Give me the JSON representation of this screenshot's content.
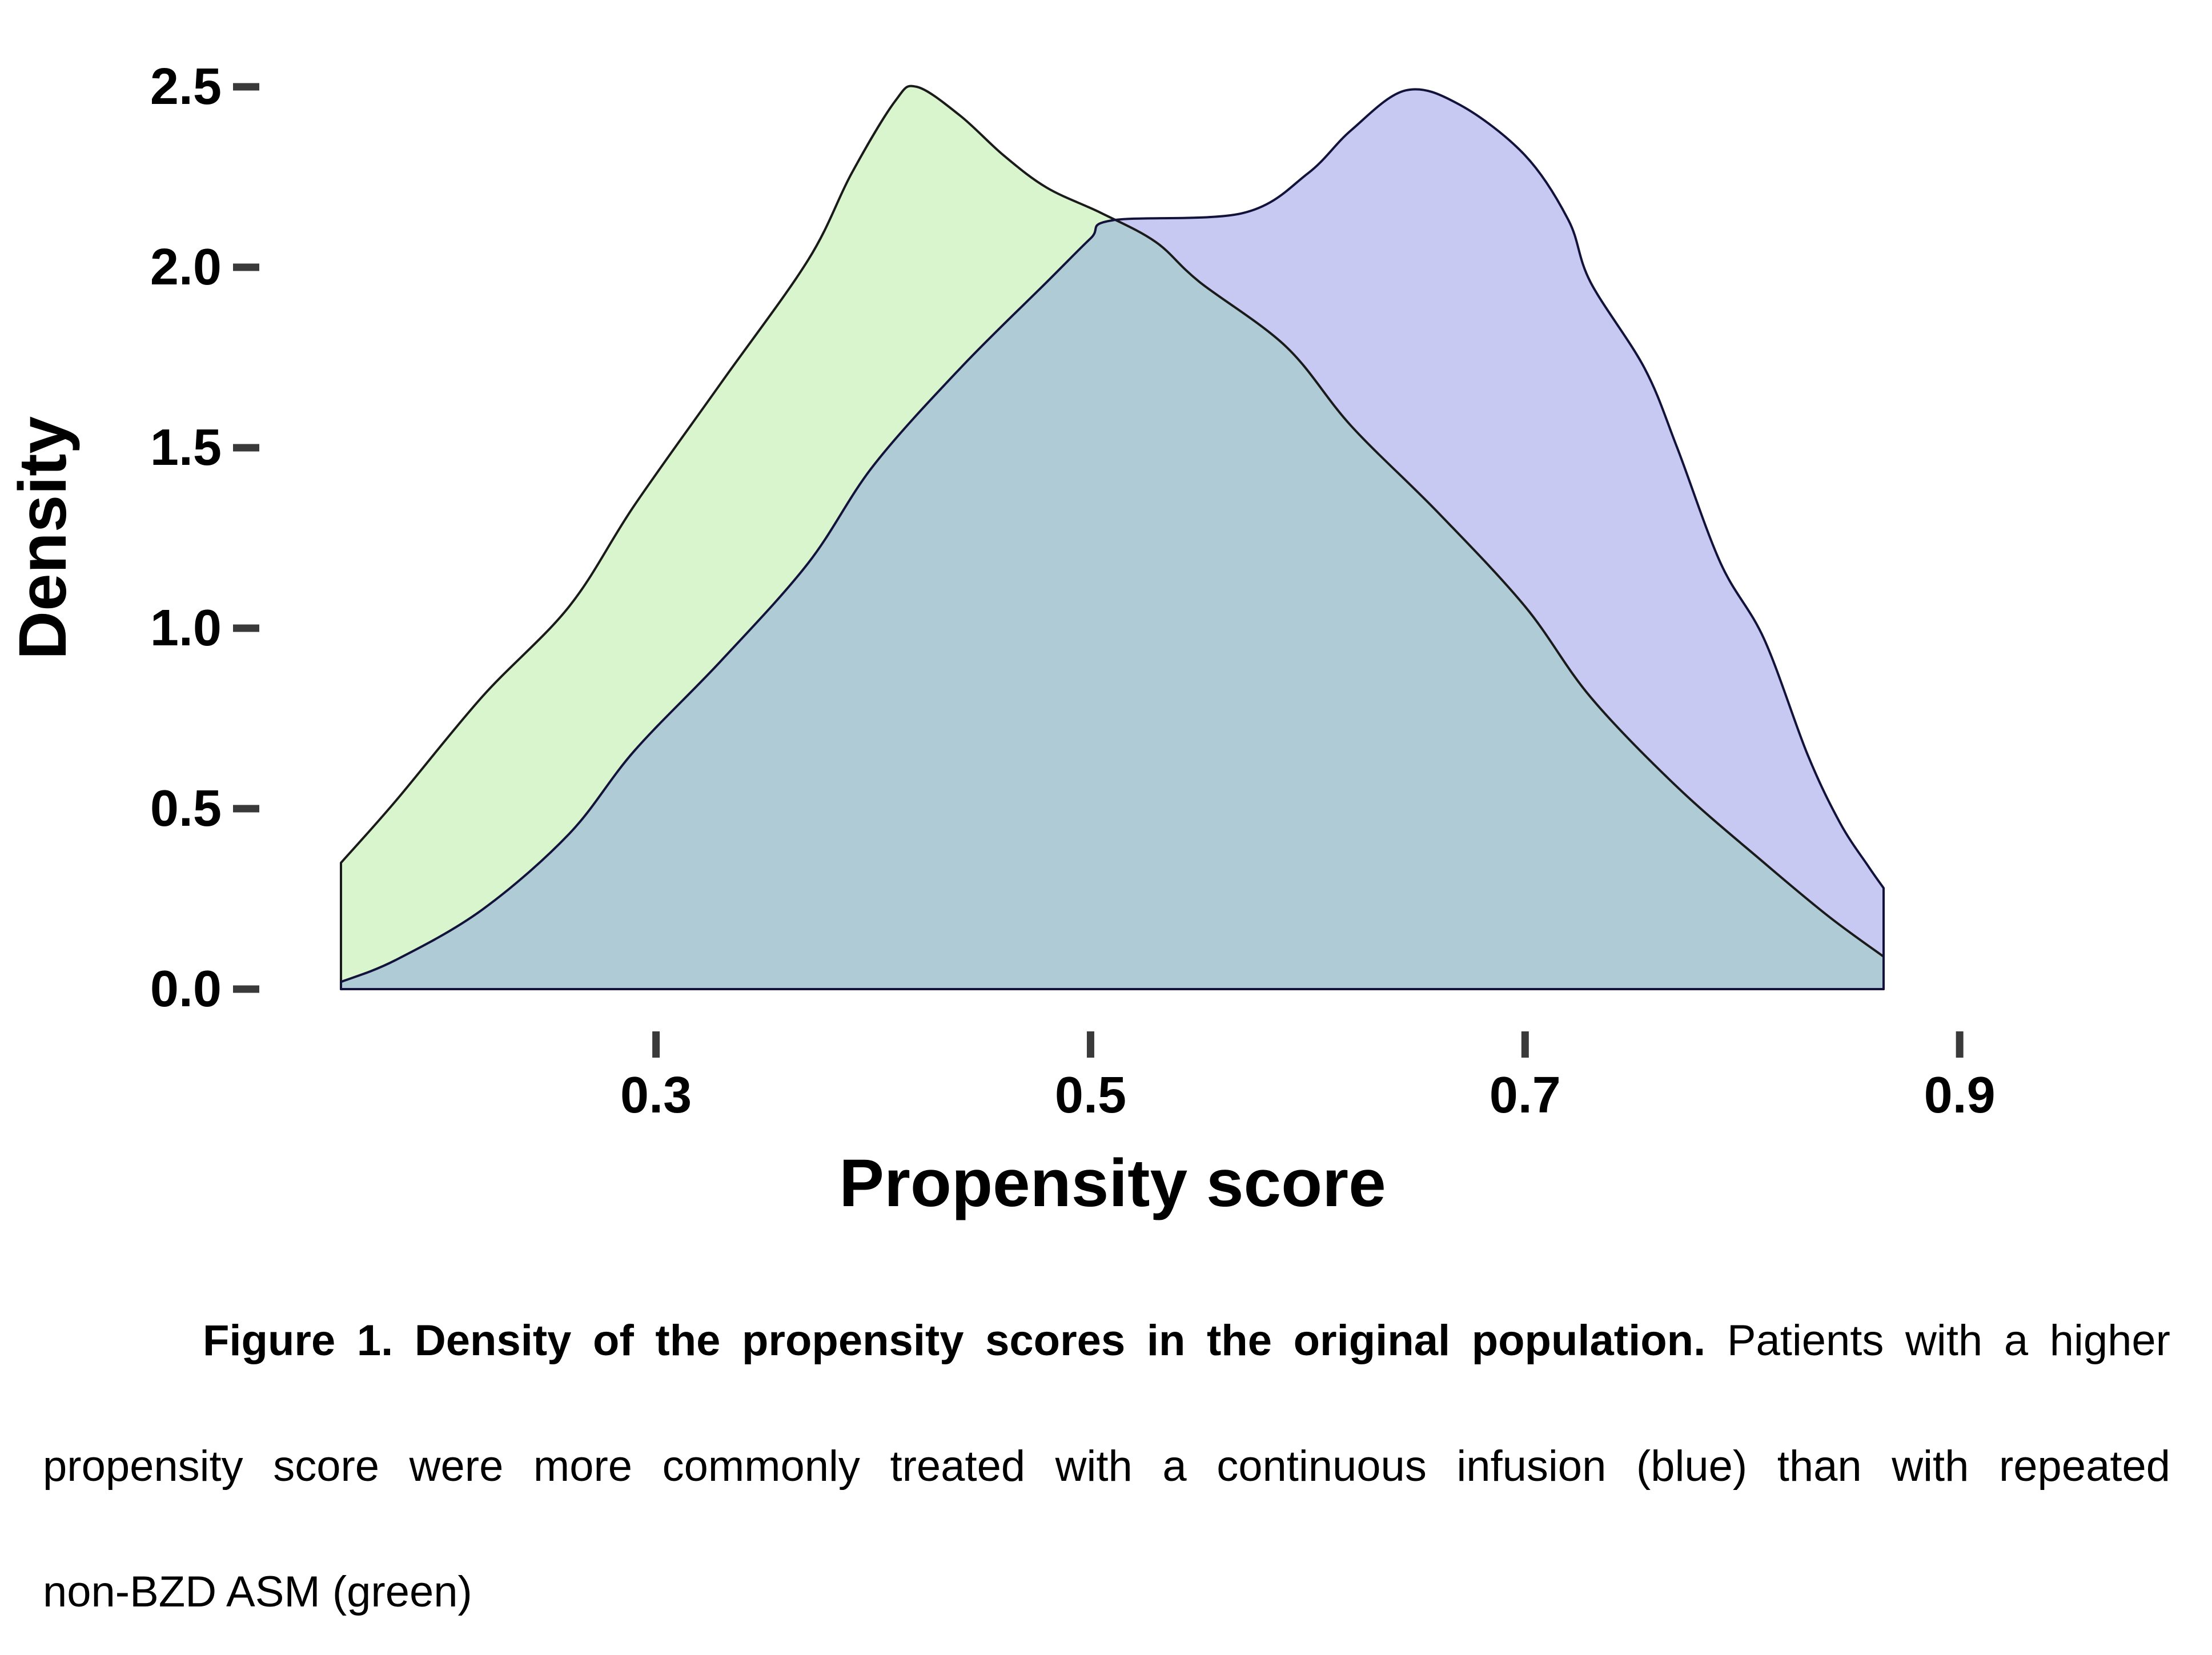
{
  "caption": {
    "line1_bold": "Figure 1. Density of the propensity scores in the original population.",
    "line1_regular": " Patients with a higher",
    "line2": "propensity score were more commonly treated with a continuous infusion (blue) than with repeated",
    "line3": "non-BZD ASM (green)"
  },
  "chart_data": {
    "type": "area",
    "title": "",
    "xlabel": "Propensity score",
    "ylabel": "Density",
    "xlim": [
      0.155,
      0.865
    ],
    "ylim": [
      0,
      2.5
    ],
    "grid": false,
    "legend": "none (series identified by color in caption: blue = continuous infusion, green = repeated non-BZD ASM)",
    "x_ticks": [
      {
        "value": 0.3,
        "label": "0.3"
      },
      {
        "value": 0.5,
        "label": "0.5"
      },
      {
        "value": 0.7,
        "label": "0.7"
      },
      {
        "value": 0.9,
        "label": "0.9"
      }
    ],
    "y_ticks": [
      {
        "value": 0.0,
        "label": "0.0"
      },
      {
        "value": 0.5,
        "label": "0.5"
      },
      {
        "value": 1.0,
        "label": "1.0"
      },
      {
        "value": 1.5,
        "label": "1.5"
      },
      {
        "value": 2.0,
        "label": "2.0"
      },
      {
        "value": 2.5,
        "label": "2.5"
      }
    ],
    "series": [
      {
        "name": "Repeated non-BZD ASM (green)",
        "fill_color": "#d9f5cd",
        "stroke_color": "#1a1a1a",
        "points": [
          [
            0.155,
            0.35
          ],
          [
            0.18,
            0.52
          ],
          [
            0.22,
            0.81
          ],
          [
            0.26,
            1.06
          ],
          [
            0.29,
            1.34
          ],
          [
            0.33,
            1.68
          ],
          [
            0.37,
            2.02
          ],
          [
            0.39,
            2.26
          ],
          [
            0.41,
            2.46
          ],
          [
            0.42,
            2.5
          ],
          [
            0.44,
            2.42
          ],
          [
            0.46,
            2.31
          ],
          [
            0.48,
            2.22
          ],
          [
            0.505,
            2.15
          ],
          [
            0.53,
            2.07
          ],
          [
            0.55,
            1.96
          ],
          [
            0.59,
            1.78
          ],
          [
            0.62,
            1.56
          ],
          [
            0.66,
            1.32
          ],
          [
            0.7,
            1.06
          ],
          [
            0.73,
            0.81
          ],
          [
            0.77,
            0.56
          ],
          [
            0.81,
            0.35
          ],
          [
            0.84,
            0.2
          ],
          [
            0.865,
            0.09
          ]
        ]
      },
      {
        "name": "Continuous infusion (blue)",
        "fill_color": "#c7c9f2",
        "stroke_color": "#12123a",
        "points": [
          [
            0.155,
            0.02
          ],
          [
            0.18,
            0.08
          ],
          [
            0.22,
            0.22
          ],
          [
            0.26,
            0.43
          ],
          [
            0.29,
            0.66
          ],
          [
            0.33,
            0.91
          ],
          [
            0.37,
            1.18
          ],
          [
            0.4,
            1.45
          ],
          [
            0.44,
            1.72
          ],
          [
            0.48,
            1.96
          ],
          [
            0.5,
            2.08
          ],
          [
            0.51,
            2.13
          ],
          [
            0.57,
            2.15
          ],
          [
            0.6,
            2.26
          ],
          [
            0.62,
            2.38
          ],
          [
            0.645,
            2.49
          ],
          [
            0.67,
            2.45
          ],
          [
            0.7,
            2.31
          ],
          [
            0.72,
            2.13
          ],
          [
            0.73,
            1.96
          ],
          [
            0.755,
            1.72
          ],
          [
            0.77,
            1.5
          ],
          [
            0.79,
            1.18
          ],
          [
            0.81,
            0.97
          ],
          [
            0.83,
            0.65
          ],
          [
            0.845,
            0.46
          ],
          [
            0.858,
            0.34
          ],
          [
            0.865,
            0.28
          ]
        ]
      }
    ],
    "overlap_color": "#aecbd6",
    "tick_color": "#3a3a3a"
  }
}
